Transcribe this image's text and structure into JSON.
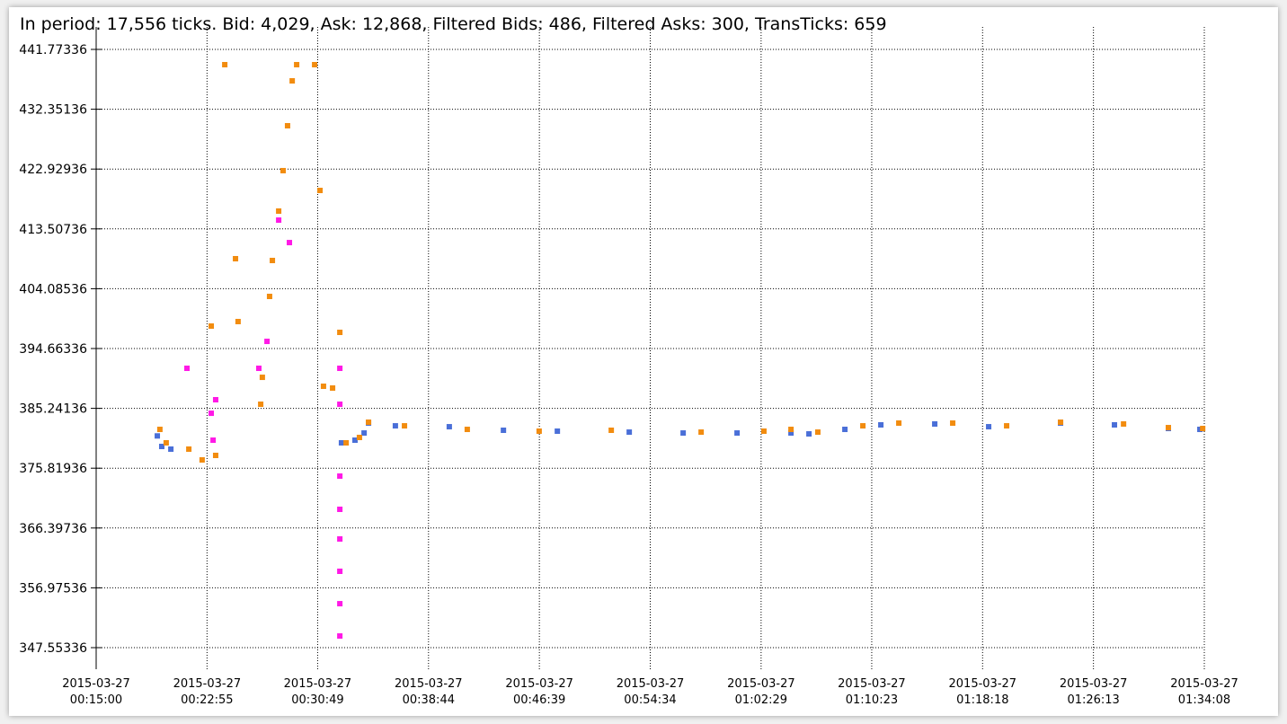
{
  "chart_data": {
    "type": "scatter",
    "title": "In period: 17,556 ticks. Bid: 4,029, Ask: 12,868, Filtered Bids: 486, Filtered Asks: 300, TransTicks: 659",
    "xlim": [
      "2015-03-27T00:15:00",
      "2015-03-27T01:34:08"
    ],
    "xticks": [
      {
        "value": "2015-03-27T00:15:00",
        "label": [
          "2015-03-27",
          "00:15:00"
        ]
      },
      {
        "value": "2015-03-27T00:22:55",
        "label": [
          "2015-03-27",
          "00:22:55"
        ]
      },
      {
        "value": "2015-03-27T00:30:49",
        "label": [
          "2015-03-27",
          "00:30:49"
        ]
      },
      {
        "value": "2015-03-27T00:38:44",
        "label": [
          "2015-03-27",
          "00:38:44"
        ]
      },
      {
        "value": "2015-03-27T00:46:39",
        "label": [
          "2015-03-27",
          "00:46:39"
        ]
      },
      {
        "value": "2015-03-27T00:54:34",
        "label": [
          "2015-03-27",
          "00:54:34"
        ]
      },
      {
        "value": "2015-03-27T01:02:29",
        "label": [
          "2015-03-27",
          "01:02:29"
        ]
      },
      {
        "value": "2015-03-27T01:10:23",
        "label": [
          "2015-03-27",
          "01:10:23"
        ]
      },
      {
        "value": "2015-03-27T01:18:18",
        "label": [
          "2015-03-27",
          "01:18:18"
        ]
      },
      {
        "value": "2015-03-27T01:26:13",
        "label": [
          "2015-03-27",
          "01:26:13"
        ]
      },
      {
        "value": "2015-03-27T01:34:08",
        "label": [
          "2015-03-27",
          "01:34:08"
        ]
      }
    ],
    "ylim": [
      344.16,
      445.31
    ],
    "yticks": [
      347.55336,
      356.97536,
      366.39736,
      375.81936,
      385.24136,
      394.66336,
      404.08536,
      413.50736,
      422.92936,
      432.35136,
      441.77336
    ],
    "grid": true,
    "series": [
      {
        "color": "#4a6fd8",
        "x": [
          "2015-03-27T00:19:22",
          "2015-03-27T00:19:41",
          "2015-03-27T00:20:20",
          "2015-03-27T00:32:31",
          "2015-03-27T00:33:29",
          "2015-03-27T00:34:08",
          "2015-03-27T00:34:27",
          "2015-03-27T00:36:22",
          "2015-03-27T00:40:13",
          "2015-03-27T00:44:05",
          "2015-03-27T00:47:56",
          "2015-03-27T00:53:04",
          "2015-03-27T00:56:55",
          "2015-03-27T01:00:46",
          "2015-03-27T01:04:37",
          "2015-03-27T01:05:54",
          "2015-03-27T01:08:28",
          "2015-03-27T01:11:02",
          "2015-03-27T01:14:53",
          "2015-03-27T01:18:44",
          "2015-03-27T01:23:52",
          "2015-03-27T01:27:43",
          "2015-03-27T01:31:34",
          "2015-03-27T01:33:49"
        ],
        "values": [
          380.9,
          379.24,
          378.82,
          379.81,
          380.23,
          381.36,
          382.92,
          382.49,
          382.35,
          381.79,
          381.65,
          381.5,
          381.36,
          381.36,
          381.36,
          381.22,
          381.93,
          382.64,
          382.78,
          382.35,
          382.92,
          382.64,
          382.07,
          381.93
        ]
      },
      {
        "color": "#f28c0f",
        "x": [
          "2015-03-27T00:19:33",
          "2015-03-27T00:20:00",
          "2015-03-27T00:21:37",
          "2015-03-27T00:22:34",
          "2015-03-27T00:23:32",
          "2015-03-27T00:23:13",
          "2015-03-27T00:24:11",
          "2015-03-27T00:24:57",
          "2015-03-27T00:25:08",
          "2015-03-27T00:26:45",
          "2015-03-27T00:26:52",
          "2015-03-27T00:27:23",
          "2015-03-27T00:27:35",
          "2015-03-27T00:28:02",
          "2015-03-27T00:28:21",
          "2015-03-27T00:28:40",
          "2015-03-27T00:29:00",
          "2015-03-27T00:29:19",
          "2015-03-27T00:30:36",
          "2015-03-27T00:30:59",
          "2015-03-27T00:31:14",
          "2015-03-27T00:31:53",
          "2015-03-27T00:32:24",
          "2015-03-27T00:32:51",
          "2015-03-27T00:33:48",
          "2015-03-27T00:34:27",
          "2015-03-27T00:37:01",
          "2015-03-27T00:41:30",
          "2015-03-27T00:46:38",
          "2015-03-27T00:51:47",
          "2015-03-27T00:58:12",
          "2015-03-27T01:02:41",
          "2015-03-27T01:04:37",
          "2015-03-27T01:06:32",
          "2015-03-27T01:09:45",
          "2015-03-27T01:12:19",
          "2015-03-27T01:16:10",
          "2015-03-27T01:20:01",
          "2015-03-27T01:23:52",
          "2015-03-27T01:28:22",
          "2015-03-27T01:31:34",
          "2015-03-27T01:34:01"
        ],
        "values": [
          381.93,
          379.81,
          378.82,
          377.12,
          377.83,
          398.2,
          439.37,
          408.81,
          398.91,
          385.89,
          390.13,
          402.87,
          408.53,
          416.31,
          422.68,
          429.75,
          436.82,
          439.37,
          439.37,
          419.56,
          388.72,
          388.44,
          397.21,
          379.81,
          380.66,
          383.06,
          382.49,
          381.93,
          381.65,
          381.79,
          381.5,
          381.65,
          381.93,
          381.5,
          382.49,
          382.92,
          382.92,
          382.49,
          383.06,
          382.78,
          382.21,
          382.07
        ]
      },
      {
        "color": "#ff19e6",
        "x": [
          "2015-03-27T00:21:29",
          "2015-03-27T00:23:13",
          "2015-03-27T00:23:32",
          "2015-03-27T00:23:21",
          "2015-03-27T00:26:37",
          "2015-03-27T00:27:12",
          "2015-03-27T00:28:02",
          "2015-03-27T00:28:48",
          "2015-03-27T00:32:24",
          "2015-03-27T00:32:24",
          "2015-03-27T00:32:24",
          "2015-03-27T00:32:24",
          "2015-03-27T00:32:24",
          "2015-03-27T00:32:24",
          "2015-03-27T00:32:24",
          "2015-03-27T00:32:24"
        ],
        "values": [
          391.55,
          384.47,
          386.6,
          380.23,
          391.55,
          395.79,
          414.89,
          411.35,
          391.55,
          385.89,
          374.57,
          369.34,
          364.67,
          359.58,
          354.48,
          349.39
        ]
      }
    ]
  }
}
